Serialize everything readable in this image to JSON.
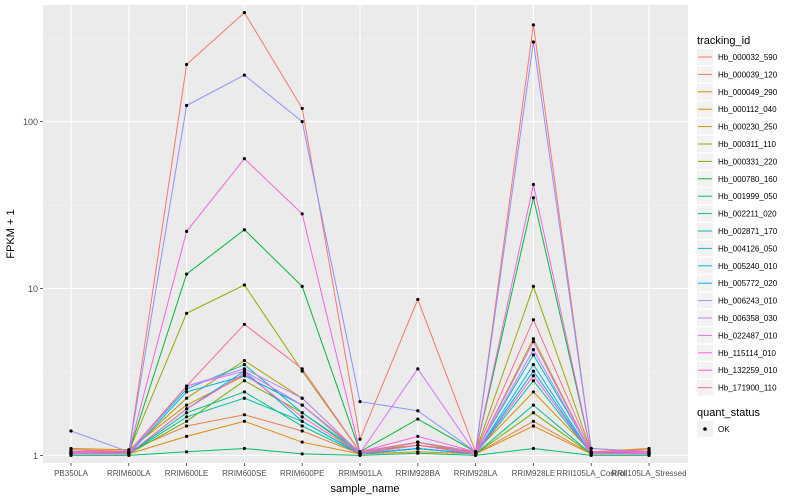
{
  "chart_data": {
    "type": "line",
    "title": "",
    "xlabel": "sample_name",
    "ylabel": "FPKM + 1",
    "y_scale": "log10",
    "ylim": [
      0.9,
      500
    ],
    "y_ticks": [
      1,
      10,
      100
    ],
    "y_tick_labels": [
      "1",
      "10",
      "100"
    ],
    "grid": true,
    "legend_position": "right",
    "categories": [
      "PB350LA",
      "RRIM600LA",
      "RRIM600LE",
      "RRIM600SE",
      "RRIM600PE",
      "RRIM901LA",
      "RRIM928BA",
      "RRIM928LA",
      "RRIM928LE",
      "RRII105LA_Control",
      "RRII105LA_Stressed"
    ],
    "legend": {
      "title": "tracking_id",
      "entries": [
        "Hb_000032_590",
        "Hb_000039_120",
        "Hb_000049_290",
        "Hb_000112_040",
        "Hb_000230_250",
        "Hb_000311_110",
        "Hb_000331_220",
        "Hb_000780_160",
        "Hb_001999_050",
        "Hb_002211_020",
        "Hb_002871_170",
        "Hb_004126_050",
        "Hb_005240_010",
        "Hb_005772_020",
        "Hb_006243_010",
        "Hb_006358_030",
        "Hb_022487_010",
        "Hb_115114_010",
        "Hb_132259_010",
        "Hb_171900_110"
      ]
    },
    "shape_legend": {
      "title": "quant_status",
      "entries": [
        "OK"
      ]
    },
    "series": [
      {
        "name": "Hb_000032_590",
        "color": "#F8766D",
        "values": [
          1.05,
          1.05,
          220,
          450,
          120,
          1.25,
          8.6,
          1.05,
          380,
          1.1,
          1.05
        ]
      },
      {
        "name": "Hb_000039_120",
        "color": "#EE8043",
        "values": [
          1.08,
          1.06,
          1.5,
          1.75,
          1.4,
          1.02,
          1.1,
          1.02,
          1.6,
          1.02,
          1.05
        ]
      },
      {
        "name": "Hb_000049_290",
        "color": "#E18A00",
        "values": [
          1.02,
          1.02,
          1.3,
          1.6,
          1.2,
          1.02,
          1.05,
          1.02,
          1.5,
          1.02,
          1.02
        ]
      },
      {
        "name": "Hb_000112_040",
        "color": "#CF9400",
        "values": [
          1.1,
          1.08,
          2.0,
          3.0,
          2.0,
          1.05,
          1.15,
          1.05,
          2.4,
          1.05,
          1.1
        ]
      },
      {
        "name": "Hb_000230_250",
        "color": "#B79F00",
        "values": [
          1.03,
          1.05,
          2.2,
          3.7,
          2.2,
          1.03,
          1.2,
          1.03,
          5.0,
          1.03,
          1.05
        ]
      },
      {
        "name": "Hb_000311_110",
        "color": "#9CA700",
        "values": [
          1.05,
          1.05,
          7.1,
          10.5,
          3.2,
          1.05,
          1.15,
          1.05,
          10.3,
          1.05,
          1.05
        ]
      },
      {
        "name": "Hb_000331_220",
        "color": "#74B100",
        "values": [
          1.02,
          1.02,
          1.6,
          2.8,
          1.8,
          1.02,
          1.2,
          1.02,
          1.8,
          1.02,
          1.02
        ]
      },
      {
        "name": "Hb_000780_160",
        "color": "#00BA38",
        "values": [
          1.02,
          1.04,
          12.2,
          22.5,
          10.3,
          1.05,
          1.65,
          1.05,
          35,
          1.05,
          1.02
        ]
      },
      {
        "name": "Hb_001999_050",
        "color": "#00BE6C",
        "values": [
          1.0,
          1.0,
          1.05,
          1.1,
          1.02,
          1.0,
          1.03,
          1.0,
          1.1,
          1.0,
          1.0
        ]
      },
      {
        "name": "Hb_002211_020",
        "color": "#00C08B",
        "values": [
          1.02,
          1.02,
          1.8,
          2.4,
          1.5,
          1.02,
          1.1,
          1.02,
          2.0,
          1.02,
          1.02
        ]
      },
      {
        "name": "Hb_002871_170",
        "color": "#00C1A7",
        "values": [
          1.02,
          1.02,
          1.7,
          2.2,
          1.6,
          1.02,
          1.1,
          1.02,
          2.8,
          1.02,
          1.02
        ]
      },
      {
        "name": "Hb_004126_050",
        "color": "#00BFC4",
        "values": [
          1.05,
          1.05,
          2.5,
          3.5,
          1.8,
          1.05,
          1.2,
          1.05,
          4.0,
          1.05,
          1.05
        ]
      },
      {
        "name": "Hb_005240_010",
        "color": "#00B9E3",
        "values": [
          1.02,
          1.02,
          1.9,
          3.2,
          1.6,
          1.02,
          1.1,
          1.02,
          3.5,
          1.02,
          1.02
        ]
      },
      {
        "name": "Hb_005772_020",
        "color": "#00ADFA",
        "values": [
          1.02,
          1.02,
          2.4,
          3.0,
          2.0,
          1.02,
          1.1,
          1.02,
          3.2,
          1.02,
          1.02
        ]
      },
      {
        "name": "Hb_006243_010",
        "color": "#8B93FF",
        "values": [
          1.4,
          1.05,
          125,
          190,
          100,
          2.1,
          1.85,
          1.05,
          300,
          1.1,
          1.05
        ]
      },
      {
        "name": "Hb_006358_030",
        "color": "#B983FF",
        "values": [
          1.03,
          1.03,
          2.6,
          3.3,
          2.2,
          1.03,
          1.2,
          1.03,
          4.3,
          1.03,
          1.03
        ]
      },
      {
        "name": "Hb_022487_010",
        "color": "#DC71FA",
        "values": [
          1.03,
          1.03,
          2.6,
          3.2,
          2.0,
          1.03,
          3.3,
          1.03,
          4.8,
          1.03,
          1.03
        ]
      },
      {
        "name": "Hb_115114_010",
        "color": "#F564E3",
        "values": [
          1.05,
          1.05,
          22,
          60,
          28,
          1.05,
          1.3,
          1.05,
          42,
          1.05,
          1.05
        ]
      },
      {
        "name": "Hb_132259_010",
        "color": "#FF61C3",
        "values": [
          1.02,
          1.02,
          1.9,
          3.1,
          1.7,
          1.02,
          1.15,
          1.02,
          3.0,
          1.02,
          1.02
        ]
      },
      {
        "name": "Hb_171900_110",
        "color": "#FF6C91",
        "values": [
          1.08,
          1.05,
          2.6,
          6.1,
          3.3,
          1.05,
          1.2,
          1.05,
          6.5,
          1.05,
          1.08
        ]
      }
    ]
  }
}
